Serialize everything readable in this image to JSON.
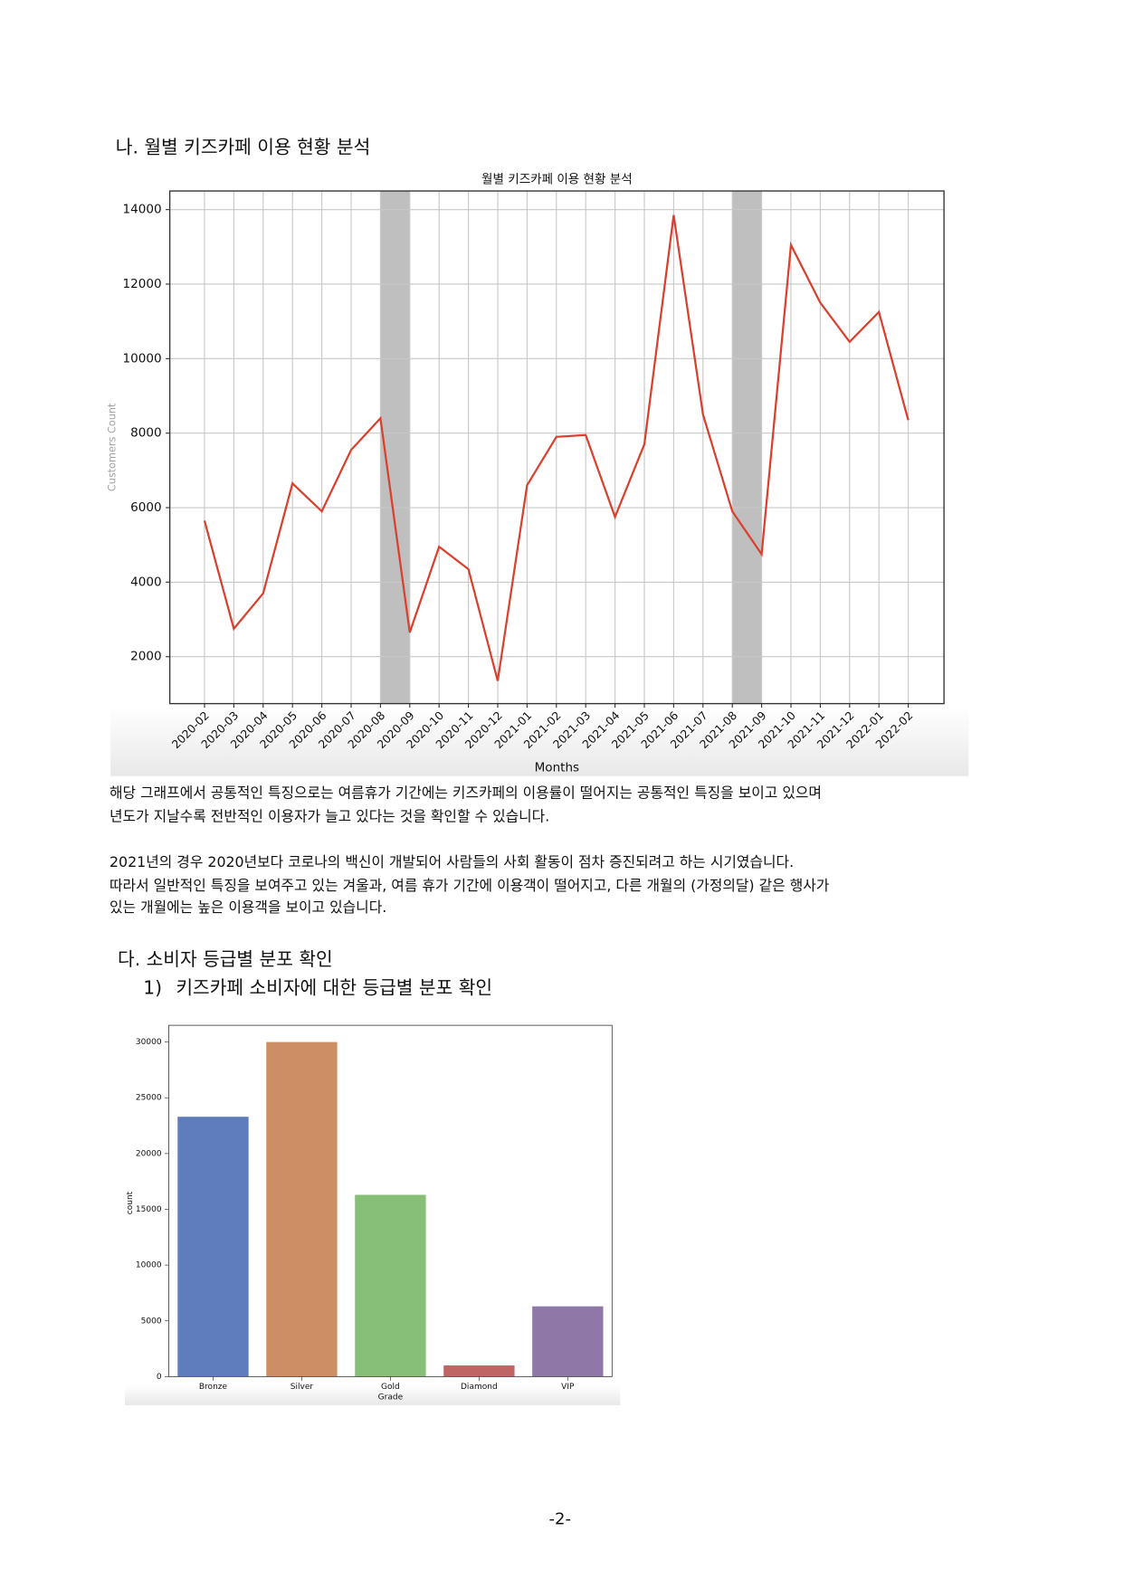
{
  "section_heading": "나. 월별 키즈카페 이용 현황 분석",
  "chart_data": [
    {
      "type": "line",
      "title": "월별 키즈카페 이용 현황 분석",
      "xlabel": "Months",
      "ylabel": "Customers Count",
      "categories": [
        "2020-02",
        "2020-03",
        "2020-04",
        "2020-05",
        "2020-06",
        "2020-07",
        "2020-08",
        "2020-09",
        "2020-10",
        "2020-11",
        "2020-12",
        "2021-01",
        "2021-02",
        "2021-03",
        "2021-04",
        "2021-05",
        "2021-06",
        "2021-07",
        "2021-08",
        "2021-09",
        "2021-10",
        "2021-11",
        "2021-12",
        "2022-01",
        "2022-02"
      ],
      "values": [
        5650,
        2750,
        3700,
        6650,
        5900,
        7550,
        8400,
        2650,
        4950,
        4350,
        1350,
        6600,
        7900,
        7950,
        5750,
        7700,
        13850,
        8500,
        5900,
        4750,
        13050,
        11500,
        10450,
        11250,
        8350
      ],
      "color": "#d9412f",
      "ylim": [
        740,
        14500
      ],
      "yticks": [
        2000,
        4000,
        6000,
        8000,
        10000,
        12000,
        14000
      ],
      "grid": true,
      "shaded_ranges": [
        [
          "2020-08",
          "2020-09"
        ],
        [
          "2021-08",
          "2021-09"
        ]
      ],
      "shade_color": "#bfbfbf"
    },
    {
      "type": "bar",
      "xlabel": "Grade",
      "ylabel": "count",
      "categories": [
        "Bronze",
        "Silver",
        "Gold",
        "Diamond",
        "VIP"
      ],
      "values": [
        23300,
        30000,
        16300,
        1000,
        6300
      ],
      "colors": [
        "#5f7dbd",
        "#cd8e65",
        "#87bf78",
        "#c06566",
        "#8f77a8"
      ],
      "ylim": [
        0,
        31500
      ],
      "yticks": [
        0,
        5000,
        10000,
        15000,
        20000,
        25000,
        30000
      ],
      "grid": false
    }
  ],
  "paragraphs": [
    [
      "해당 그래프에서 공통적인 특징으로는 여름휴가 기간에는 키즈카페의 이용률이 떨어지는 공통적인 특징을 보이고 있으며",
      "년도가 지날수록 전반적인 이용자가 늘고 있다는 것을 확인할 수 있습니다."
    ],
    [
      "2021년의 경우 2020년보다 코로나의 백신이 개발되어 사람들의 사회 활동이 점차 증진되려고 하는 시기였습니다.",
      "따라서 일반적인 특징을 보여주고 있는 겨울과, 여름 휴가 기간에 이용객이 떨어지고, 다른 개월의 (가정의달) 같은 행사가",
      "있는 개월에는 높은 이용객을 보이고 있습니다."
    ]
  ],
  "section_heading_2": "다. 소비자 등급별 분포 확인",
  "sub_number": "1)",
  "sub_heading": "키즈카페 소비자에 대한 등급별 분포 확인",
  "page_number": "-2-"
}
